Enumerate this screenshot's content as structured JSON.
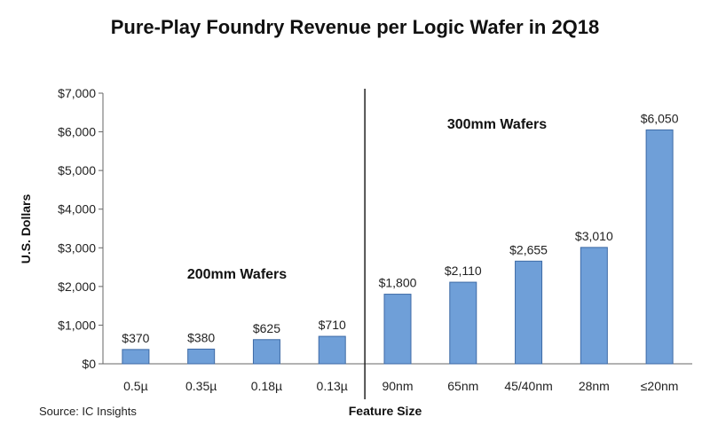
{
  "chart_data": {
    "type": "bar",
    "title": "Pure-Play Foundry Revenue per Logic Wafer in 2Q18",
    "xlabel": "Feature Size",
    "ylabel": "U.S. Dollars",
    "ylim": [
      0,
      7000
    ],
    "yticks": [
      "$0",
      "$1,000",
      "$2,000",
      "$3,000",
      "$4,000",
      "$5,000",
      "$6,000",
      "$7,000"
    ],
    "ytick_values": [
      0,
      1000,
      2000,
      3000,
      4000,
      5000,
      6000,
      7000
    ],
    "categories": [
      "0.5µ",
      "0.35µ",
      "0.18µ",
      "0.13µ",
      "90nm",
      "65nm",
      "45/40nm",
      "28nm",
      "≤20nm"
    ],
    "values": [
      370,
      380,
      625,
      710,
      1800,
      2110,
      2655,
      3010,
      6050
    ],
    "data_labels": [
      "$370",
      "$380",
      "$625",
      "$710",
      "$1,800",
      "$2,110",
      "$2,655",
      "$3,010",
      "$6,050"
    ],
    "bar_color": "#6f9fd8",
    "bar_edge_color": "#3d6aa6",
    "grid": false,
    "legend": "none",
    "annotations": [
      "200mm Wafers",
      "300mm Wafers"
    ],
    "divider_after_index": 3,
    "source": "Source: IC Insights"
  }
}
